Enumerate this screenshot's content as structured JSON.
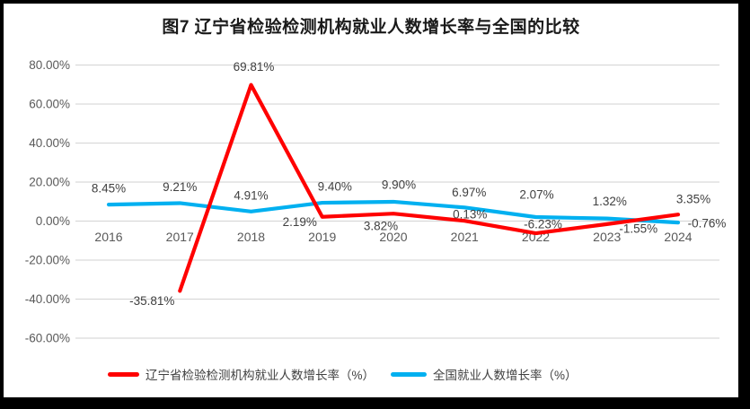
{
  "title": "图7  辽宁省检验检测机构就业人数增长率与全国的比较",
  "chart_data": {
    "type": "line",
    "categories": [
      "2016",
      "2017",
      "2018",
      "2019",
      "2020",
      "2021",
      "2022",
      "2023",
      "2024"
    ],
    "series": [
      {
        "name": "辽宁省检验检测机构就业人数增长率（%）",
        "color": "#FF0000",
        "values": [
          null,
          -35.81,
          69.81,
          2.19,
          3.82,
          0.13,
          -6.23,
          -1.55,
          3.35
        ],
        "labels": [
          "",
          "-35.81%",
          "69.81%",
          "2.19%",
          "3.82%",
          "0.13%",
          "-6.23%",
          "-1.55%",
          "3.35%"
        ]
      },
      {
        "name": "全国就业人数增长率（%）",
        "color": "#00B0F0",
        "values": [
          8.45,
          9.21,
          4.91,
          9.4,
          9.9,
          6.97,
          2.07,
          1.32,
          -0.76
        ],
        "labels": [
          "8.45%",
          "9.21%",
          "4.91%",
          "9.40%",
          "9.90%",
          "6.97%",
          "2.07%",
          "1.32%",
          "-0.76%"
        ]
      }
    ],
    "ylim": [
      -60,
      80
    ],
    "ytick_step": 20,
    "ytick_labels": [
      "80.00%",
      "60.00%",
      "40.00%",
      "20.00%",
      "0.00%",
      "-20.00%",
      "-40.00%",
      "-60.00%"
    ],
    "grid": true,
    "legend_position": "bottom"
  },
  "colors": {
    "grid": "#D9D9D9",
    "tick_text": "#595959",
    "label_text": "#404040",
    "frame": "#000000",
    "background": "#FFFFFF"
  }
}
